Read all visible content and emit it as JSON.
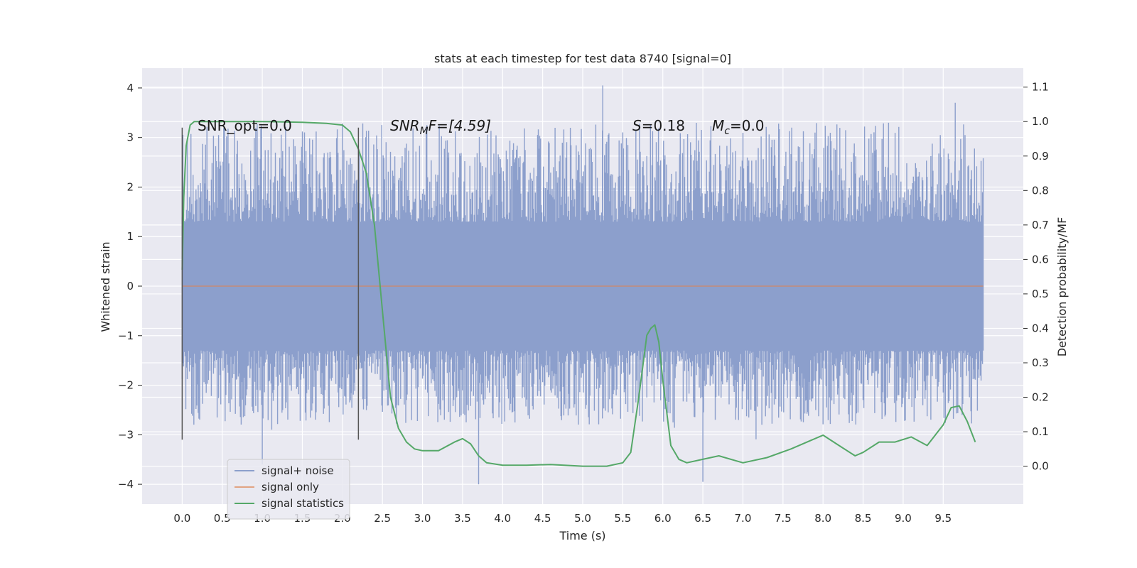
{
  "chart_data": {
    "type": "line",
    "title": "stats at each timestep for test data 8740 [signal=0]",
    "xlabel": "Time (s)",
    "ylabel": "Whitened strain",
    "y2label": "Detection probability/MF",
    "xlim": [
      -0.5,
      10.5
    ],
    "ylim": [
      -4.4,
      4.4
    ],
    "y2lim": [
      -0.11,
      1.155
    ],
    "xticks": [
      "0.0",
      "0.5",
      "1.0",
      "1.5",
      "2.0",
      "2.5",
      "3.0",
      "3.5",
      "4.0",
      "4.5",
      "5.0",
      "5.5",
      "6.0",
      "6.5",
      "7.0",
      "7.5",
      "8.0",
      "8.5",
      "9.0",
      "9.5"
    ],
    "yticks": [
      "4",
      "3",
      "2",
      "1",
      "0",
      "−1",
      "−2",
      "−3",
      "−4"
    ],
    "y2ticks": [
      "1.1",
      "1.0",
      "0.9",
      "0.8",
      "0.7",
      "0.6",
      "0.5",
      "0.4",
      "0.3",
      "0.2",
      "0.1",
      "0.0"
    ],
    "grid": true,
    "legend_position": "lower-left",
    "annotations": {
      "snr_opt": "SNR_opt=0.0",
      "snr_mf_base": "SNR",
      "snr_mf_sub": "M",
      "snr_mf_rest": "F=[4.59]",
      "s_base": "S",
      "s_rest": "=0.18",
      "mc_base": "M",
      "mc_sub": "c",
      "mc_rest": "=0.0"
    },
    "vlines": [
      0.0,
      2.2
    ],
    "series": [
      {
        "name": "signal+ noise",
        "color": "#8c9fcc",
        "axis": "left",
        "kind": "noise",
        "x_range": [
          0.0,
          10.0
        ],
        "core_range": [
          -1.25,
          1.25
        ],
        "typical_peaks": [
          -2.8,
          3.3
        ],
        "max": 4.05,
        "min": -4.0
      },
      {
        "name": "signal only",
        "color": "#dd8452",
        "axis": "left",
        "x": [
          0.0,
          10.0
        ],
        "y": [
          0.0,
          0.0
        ]
      },
      {
        "name": "signal statistics",
        "color": "#55a868",
        "axis": "right",
        "x": [
          0.0,
          0.02,
          0.05,
          0.1,
          0.15,
          0.2,
          0.3,
          0.5,
          1.0,
          1.5,
          1.8,
          2.0,
          2.1,
          2.2,
          2.3,
          2.4,
          2.5,
          2.6,
          2.7,
          2.8,
          2.9,
          3.0,
          3.2,
          3.4,
          3.5,
          3.6,
          3.7,
          3.8,
          4.0,
          4.3,
          4.6,
          5.0,
          5.3,
          5.5,
          5.6,
          5.7,
          5.8,
          5.85,
          5.9,
          5.95,
          6.0,
          6.1,
          6.2,
          6.3,
          6.5,
          6.7,
          7.0,
          7.3,
          7.6,
          8.0,
          8.2,
          8.4,
          8.5,
          8.7,
          8.9,
          9.1,
          9.3,
          9.5,
          9.6,
          9.7,
          9.8,
          9.9
        ],
        "y": [
          0.57,
          0.78,
          0.93,
          0.99,
          1.0,
          1.0,
          1.0,
          1.0,
          1.0,
          0.998,
          0.995,
          0.99,
          0.97,
          0.92,
          0.85,
          0.7,
          0.45,
          0.2,
          0.11,
          0.07,
          0.05,
          0.045,
          0.045,
          0.07,
          0.08,
          0.065,
          0.03,
          0.01,
          0.003,
          0.003,
          0.005,
          0.0,
          0.0,
          0.01,
          0.04,
          0.2,
          0.38,
          0.4,
          0.41,
          0.36,
          0.25,
          0.06,
          0.02,
          0.01,
          0.02,
          0.03,
          0.01,
          0.025,
          0.05,
          0.09,
          0.06,
          0.03,
          0.04,
          0.07,
          0.07,
          0.085,
          0.06,
          0.12,
          0.17,
          0.175,
          0.13,
          0.07
        ]
      }
    ]
  }
}
